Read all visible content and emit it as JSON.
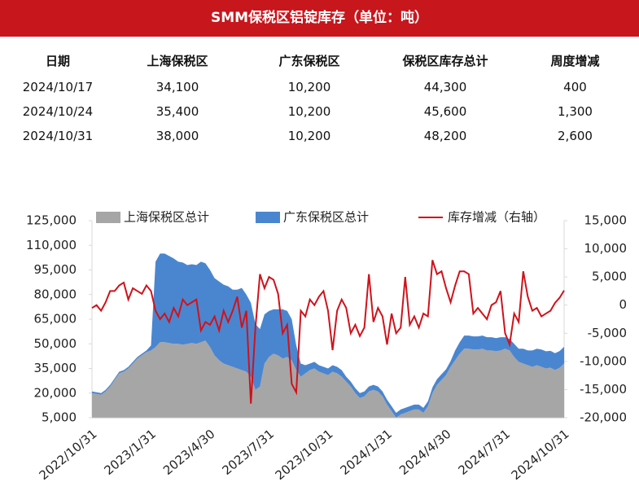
{
  "header": {
    "title": "SMM保税区铝锭库存（单位：吨）"
  },
  "table": {
    "columns": [
      "日期",
      "上海保税区",
      "广东保税区",
      "保税区库存总计",
      "周度增减"
    ],
    "rows": [
      [
        "2024/10/17",
        "34,100",
        "10,200",
        "44,300",
        "400"
      ],
      [
        "2024/10/24",
        "35,400",
        "10,200",
        "45,600",
        "1,300"
      ],
      [
        "2024/10/31",
        "38,000",
        "10,200",
        "48,200",
        "2,600"
      ]
    ]
  },
  "chart_data": {
    "type": "stacked_area_line",
    "categories": [
      "2022/10/31",
      null,
      null,
      null,
      null,
      null,
      null,
      null,
      null,
      null,
      null,
      null,
      null,
      "2023/1/31",
      null,
      null,
      null,
      null,
      null,
      null,
      null,
      null,
      null,
      null,
      null,
      null,
      "2023/4/30",
      null,
      null,
      null,
      null,
      null,
      null,
      null,
      null,
      null,
      null,
      null,
      null,
      "2023/7/31",
      null,
      null,
      null,
      null,
      null,
      null,
      null,
      null,
      null,
      null,
      null,
      null,
      "2023/10/31",
      null,
      null,
      null,
      null,
      null,
      null,
      null,
      null,
      null,
      null,
      null,
      null,
      "2024/1/31",
      null,
      null,
      null,
      null,
      null,
      null,
      null,
      null,
      null,
      null,
      null,
      null,
      "2024/4/30",
      null,
      null,
      null,
      null,
      null,
      null,
      null,
      null,
      null,
      null,
      null,
      null,
      "2024/7/31",
      null,
      null,
      null,
      null,
      null,
      null,
      null,
      null,
      null,
      null,
      null,
      null,
      "2024/10/31"
    ],
    "series": [
      {
        "name": "上海保税区总计",
        "color": "#a6a6a6",
        "values": [
          20000,
          19500,
          19000,
          21000,
          24000,
          28000,
          32000,
          33000,
          35000,
          38000,
          41000,
          43000,
          45000,
          46000,
          48000,
          51000,
          51000,
          50500,
          50000,
          50000,
          49500,
          50000,
          50500,
          50000,
          51000,
          52000,
          48000,
          43000,
          40000,
          38000,
          37000,
          36000,
          35000,
          34000,
          33000,
          30000,
          22000,
          24000,
          38000,
          42000,
          44000,
          43000,
          41000,
          42000,
          40000,
          34000,
          30000,
          32000,
          34000,
          35000,
          33000,
          32000,
          31000,
          33000,
          32000,
          30000,
          27000,
          24000,
          20000,
          17000,
          18000,
          21000,
          22000,
          21000,
          18000,
          13000,
          9000,
          5000,
          7000,
          8000,
          9000,
          10000,
          10000,
          8000,
          12000,
          20000,
          25000,
          28000,
          31000,
          36000,
          40000,
          44000,
          47000,
          47000,
          46500,
          46500,
          47000,
          46000,
          46000,
          45500,
          46000,
          47000,
          46000,
          42000,
          39000,
          38000,
          37000,
          36000,
          37000,
          36000,
          35000,
          35500,
          34100,
          35400,
          38000
        ]
      },
      {
        "name": "广东保税区总计",
        "color": "#4a86d0",
        "values": [
          1000,
          1000,
          1000,
          1000,
          1000,
          1000,
          1000,
          1000,
          1000,
          1000,
          1000,
          1000,
          1000,
          3000,
          52000,
          54000,
          54000,
          53000,
          52000,
          50000,
          50000,
          48000,
          48000,
          48000,
          49000,
          47000,
          47000,
          47000,
          48000,
          48000,
          48000,
          47000,
          48000,
          50000,
          47000,
          45000,
          40000,
          35000,
          30000,
          28000,
          27000,
          28000,
          30000,
          28000,
          25000,
          15000,
          8000,
          5000,
          4000,
          4000,
          4000,
          4000,
          4000,
          4000,
          4000,
          4000,
          3000,
          3000,
          3000,
          3000,
          3000,
          3000,
          3000,
          3000,
          3000,
          3000,
          3000,
          3000,
          3000,
          3000,
          3000,
          3000,
          3000,
          3000,
          3000,
          3500,
          3500,
          3500,
          3500,
          3500,
          6000,
          7000,
          8000,
          8000,
          8000,
          8000,
          8000,
          8000,
          8000,
          8000,
          8000,
          7000,
          7000,
          8000,
          8000,
          9000,
          9000,
          10000,
          10000,
          10500,
          10500,
          10200,
          10200,
          10200,
          10200
        ]
      },
      {
        "name": "库存增减（右轴）",
        "color": "#d0121b",
        "axis": "y2",
        "values": [
          -500,
          0,
          -1000,
          500,
          2500,
          2500,
          3500,
          4000,
          1000,
          3000,
          2500,
          2000,
          3500,
          2500,
          -1000,
          -2500,
          -1500,
          -3000,
          -500,
          -2000,
          1000,
          0,
          500,
          1000,
          -4500,
          -3000,
          -3500,
          -2000,
          -4500,
          -1000,
          -3000,
          -1000,
          1500,
          -4000,
          -1000,
          -17500,
          -4000,
          5500,
          3000,
          5000,
          4500,
          2000,
          -5000,
          -3500,
          -14000,
          -15500,
          -1000,
          -2000,
          1000,
          0,
          1500,
          2500,
          -1000,
          -8000,
          -1000,
          1000,
          -500,
          -5000,
          -3500,
          -5500,
          -4000,
          5500,
          -3000,
          -500,
          -2000,
          -7000,
          -1500,
          -5000,
          -4000,
          5000,
          -3500,
          -2000,
          -4000,
          -1500,
          -2000,
          8000,
          5500,
          6000,
          3000,
          500,
          3500,
          6000,
          6000,
          5500,
          -1500,
          -500,
          -1500,
          -2500,
          0,
          500,
          2500,
          -5000,
          -7000,
          -1500,
          -3000,
          6000,
          1500,
          -1000,
          -500,
          -2000,
          -1500,
          -1000,
          400,
          1300,
          2600
        ]
      }
    ],
    "ylim": [
      5000,
      125000
    ],
    "yticks": [
      {
        "value": 5000,
        "label": "5,000"
      },
      {
        "value": 20000,
        "label": "20,000"
      },
      {
        "value": 35000,
        "label": "35,000"
      },
      {
        "value": 50000,
        "label": "50,000"
      },
      {
        "value": 65000,
        "label": "65,000"
      },
      {
        "value": 80000,
        "label": "80,000"
      },
      {
        "value": 95000,
        "label": "95,000"
      },
      {
        "value": 110000,
        "label": "110,000"
      },
      {
        "value": 125000,
        "label": "125,000"
      }
    ],
    "y2lim": [
      -20000,
      15000
    ],
    "y2ticks": [
      {
        "value": -20000,
        "label": "-20,000"
      },
      {
        "value": -15000,
        "label": "-15,000"
      },
      {
        "value": -10000,
        "label": "-10,000"
      },
      {
        "value": -5000,
        "label": "-5,000"
      },
      0,
      {
        "value": 5000,
        "label": "5,000"
      },
      {
        "value": 10000,
        "label": "10,000"
      },
      {
        "value": 15000,
        "label": "15,000"
      }
    ]
  }
}
